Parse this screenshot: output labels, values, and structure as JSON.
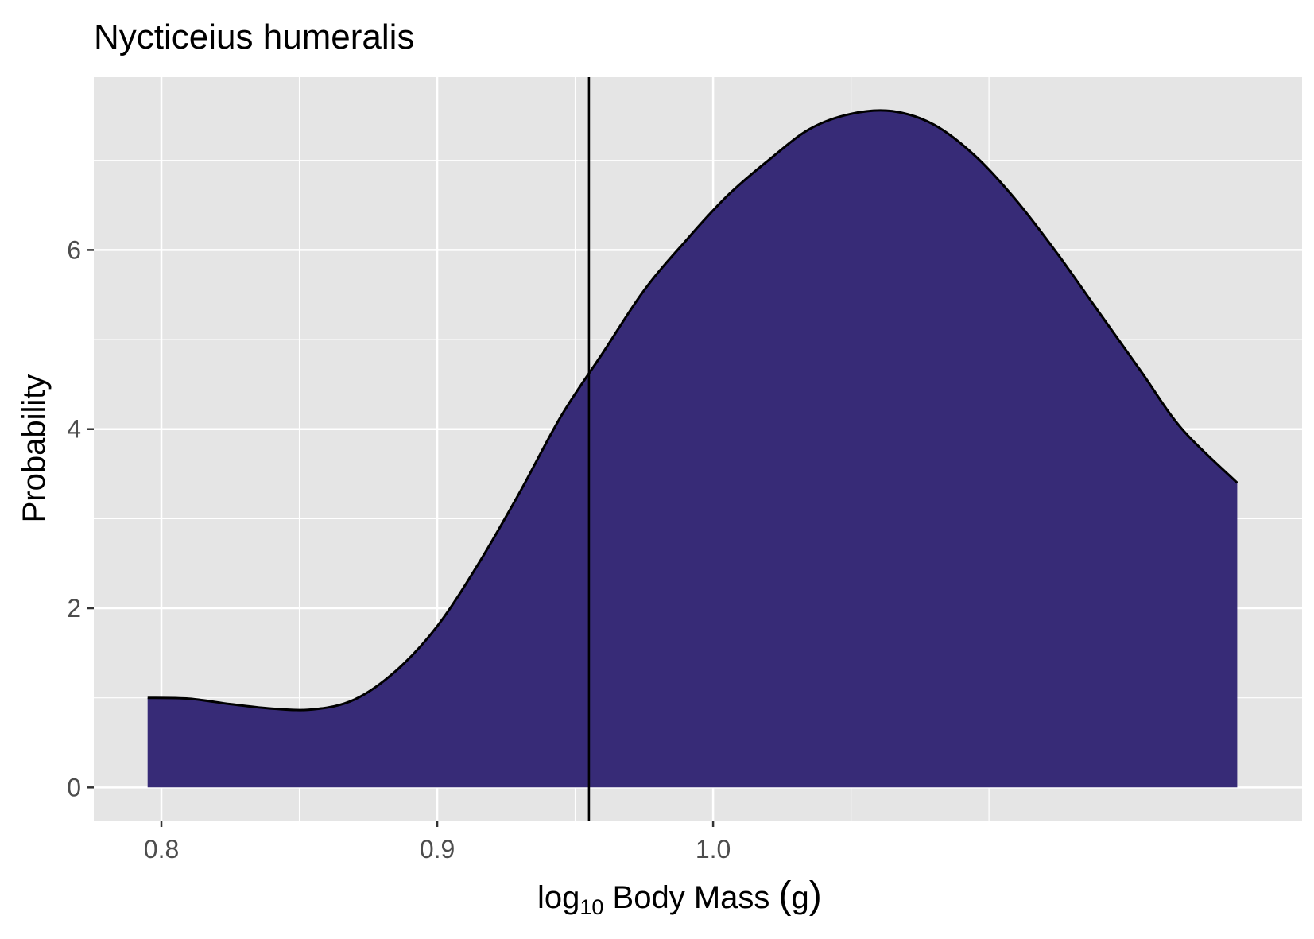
{
  "chart_data": {
    "type": "area",
    "title": "Nycticeius humeralis",
    "xlabel": {
      "prefix": "log",
      "subscript": "10",
      "rest": " Body Mass ",
      "paren_open": "(",
      "unit": "g",
      "paren_close": ")"
    },
    "ylabel": "Probability",
    "xlim": [
      0.7755,
      1.2135
    ],
    "ylim": [
      -0.37,
      7.93
    ],
    "x_ticks": [
      {
        "value": 0.8,
        "label": "0.8"
      },
      {
        "value": 0.9,
        "label": "0.9"
      },
      {
        "value": 1.0,
        "label": "1.0"
      }
    ],
    "x_minor_grid": [
      0.85,
      0.95,
      1.05,
      1.1
    ],
    "y_ticks": [
      {
        "value": 0,
        "label": "0"
      },
      {
        "value": 2,
        "label": "2"
      },
      {
        "value": 4,
        "label": "4"
      },
      {
        "value": 6,
        "label": "6"
      }
    ],
    "y_minor_grid": [
      1,
      3,
      5,
      7
    ],
    "grid": true,
    "legend": "none",
    "series": [
      {
        "x": [
          0.795,
          0.81,
          0.825,
          0.84,
          0.855,
          0.87,
          0.885,
          0.9,
          0.915,
          0.93,
          0.945,
          0.96,
          0.975,
          0.99,
          1.005,
          1.02,
          1.035,
          1.05,
          1.065,
          1.08,
          1.095,
          1.11,
          1.125,
          1.14,
          1.155,
          1.17,
          1.19
        ],
        "y": [
          1.0,
          0.99,
          0.93,
          0.88,
          0.87,
          0.98,
          1.3,
          1.8,
          2.5,
          3.3,
          4.15,
          4.85,
          5.55,
          6.1,
          6.6,
          7.0,
          7.35,
          7.52,
          7.55,
          7.4,
          7.05,
          6.55,
          5.95,
          5.3,
          4.65,
          4.0,
          3.4
        ],
        "fill": "#372b77"
      }
    ],
    "vline": {
      "x": 0.955
    },
    "colors": {
      "panel": "#e5e5e5",
      "grid": "#ffffff",
      "area": "#372b77",
      "line": "#000000",
      "tick_label": "#4d4d4d"
    }
  }
}
